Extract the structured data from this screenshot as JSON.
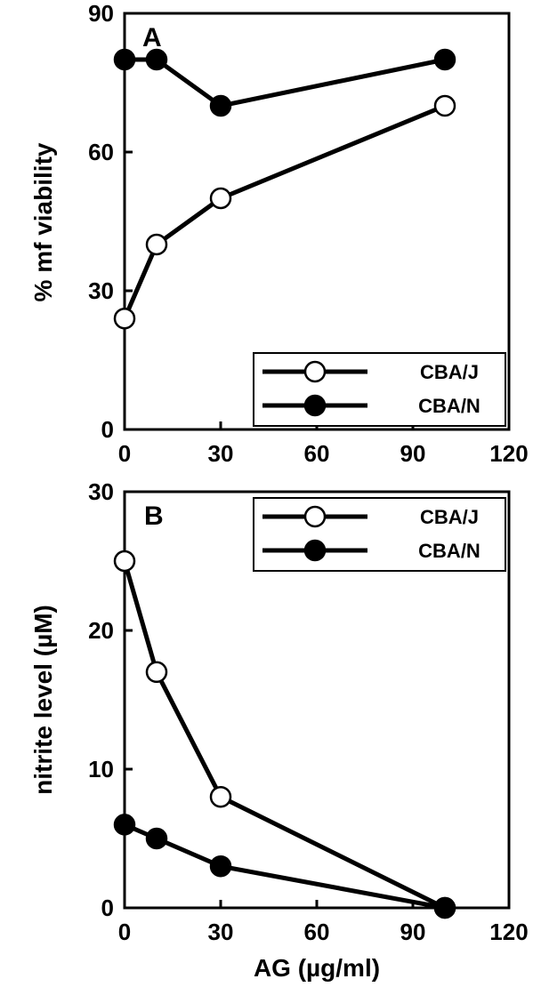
{
  "chart_data": [
    {
      "type": "line",
      "panel_label": "A",
      "title": "",
      "xlabel": "",
      "ylabel": "% mf viability",
      "xlim": [
        0,
        120
      ],
      "ylim": [
        0,
        90
      ],
      "xticks": [
        "0",
        "30",
        "60",
        "90",
        "120"
      ],
      "yticks": [
        "0",
        "30",
        "60",
        "90"
      ],
      "legend_position": "bottom-right",
      "series": [
        {
          "name": "CBA/J",
          "marker": "open-circle",
          "x": [
            0,
            10,
            30,
            100
          ],
          "y": [
            24,
            40,
            50,
            70
          ]
        },
        {
          "name": "CBA/N",
          "marker": "filled-circle",
          "x": [
            0,
            10,
            30,
            100
          ],
          "y": [
            80,
            80,
            70,
            80
          ]
        }
      ]
    },
    {
      "type": "line",
      "panel_label": "B",
      "title": "",
      "xlabel": "AG (µg/ml)",
      "ylabel": "nitrite level (µM)",
      "xlim": [
        0,
        120
      ],
      "ylim": [
        0,
        30
      ],
      "xticks": [
        "0",
        "30",
        "60",
        "90",
        "120"
      ],
      "yticks": [
        "0",
        "10",
        "20",
        "30"
      ],
      "legend_position": "top-right",
      "series": [
        {
          "name": "CBA/J",
          "marker": "open-circle",
          "x": [
            0,
            10,
            30,
            100
          ],
          "y": [
            25,
            17,
            8,
            0
          ]
        },
        {
          "name": "CBA/N",
          "marker": "filled-circle",
          "x": [
            0,
            10,
            30,
            100
          ],
          "y": [
            6,
            5,
            3,
            0
          ]
        }
      ]
    }
  ]
}
